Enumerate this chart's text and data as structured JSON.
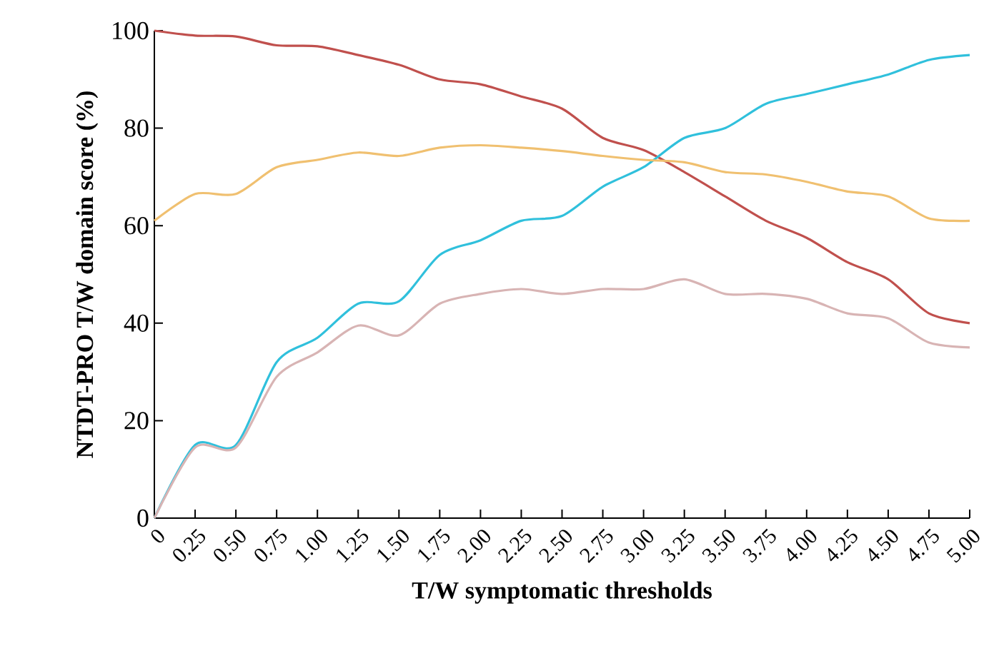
{
  "chart_data": {
    "type": "line",
    "xlabel": "T/W symptomatic thresholds",
    "ylabel": "NTDT-PRO T/W domain score (%)",
    "x": [
      0,
      0.25,
      0.5,
      0.75,
      1.0,
      1.25,
      1.5,
      1.75,
      2.0,
      2.25,
      2.5,
      2.75,
      3.0,
      3.25,
      3.5,
      3.75,
      4.0,
      4.25,
      4.5,
      4.75,
      5.0
    ],
    "series": [
      {
        "color": "#c0504d",
        "values": [
          100,
          99,
          98.8,
          97,
          96.8,
          95,
          93,
          90,
          89,
          86.5,
          84,
          78,
          75.5,
          71,
          66,
          61,
          57.5,
          52.5,
          49,
          42,
          40
        ]
      },
      {
        "color": "#30c0dc",
        "values": [
          0,
          15,
          15,
          32,
          37,
          44,
          44.5,
          54,
          57,
          61,
          62,
          68,
          72,
          78,
          80,
          85,
          87,
          89,
          91,
          94,
          95
        ]
      },
      {
        "color": "#f0c070",
        "values": [
          61,
          66.5,
          66.5,
          72,
          73.5,
          75,
          74.3,
          76,
          76.5,
          76,
          75.3,
          74.3,
          73.5,
          73,
          71,
          70.5,
          69,
          67,
          66,
          61.5,
          61
        ]
      },
      {
        "color": "#d8b4b4",
        "values": [
          0,
          14.5,
          14.5,
          29,
          34,
          39.5,
          37.5,
          44,
          46,
          47,
          46,
          47,
          47,
          49,
          46,
          46,
          45,
          42,
          41,
          36,
          35
        ]
      }
    ],
    "xlim": [
      0,
      5.0
    ],
    "ylim": [
      0,
      100
    ],
    "xticks": [
      0,
      0.25,
      {
        "value": 0.5,
        "label": "0.50"
      },
      0.75,
      {
        "value": 1,
        "label": "1.00"
      },
      1.25,
      {
        "value": 1.5,
        "label": "1.50"
      },
      1.75,
      {
        "value": 2,
        "label": "2.00"
      },
      2.25,
      {
        "value": 2.5,
        "label": "2.50"
      },
      2.75,
      {
        "value": 3,
        "label": "3.00"
      },
      3.25,
      {
        "value": 3.5,
        "label": "3.50"
      },
      3.75,
      {
        "value": 4,
        "label": "4.00"
      },
      4.25,
      {
        "value": 4.5,
        "label": "4.50"
      },
      4.75,
      {
        "value": 5,
        "label": "5.00"
      }
    ],
    "yticks": [
      0,
      20,
      40,
      60,
      80,
      100
    ],
    "grid": false,
    "legend": false,
    "marker": "none",
    "line_style": "solid"
  }
}
